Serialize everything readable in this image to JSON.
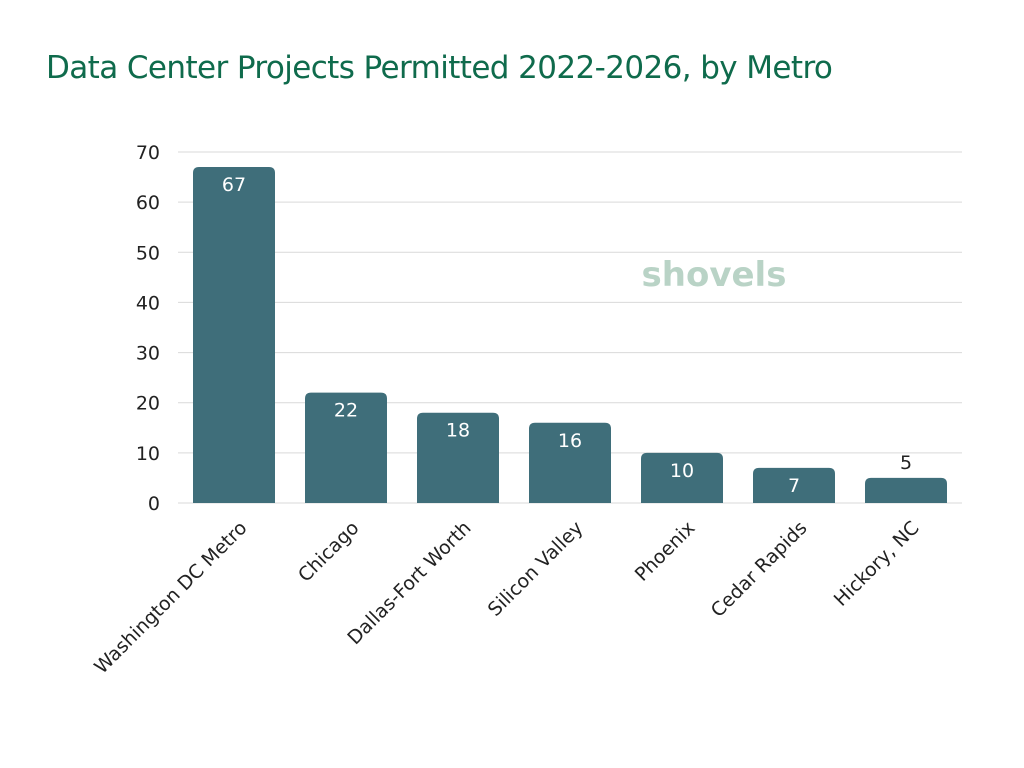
{
  "colors": {
    "title": "#0f6b4c",
    "bar": "#3f6e7a",
    "grid": "#d9d9d9",
    "label_inside": "#ffffff",
    "label_outside": "#222222",
    "watermark": "#b9d3c6",
    "watermark_accent": "#f0c98a"
  },
  "watermark": {
    "text": "shovels"
  },
  "chart_data": {
    "type": "bar",
    "title": "Data Center Projects Permitted 2022-2026, by Metro",
    "xlabel": "",
    "ylabel": "",
    "categories": [
      "Washington DC Metro",
      "Chicago",
      "Dallas-Fort Worth",
      "Silicon Valley",
      "Phoenix",
      "Cedar Rapids",
      "Hickory, NC"
    ],
    "values": [
      67,
      22,
      18,
      16,
      10,
      7,
      5
    ],
    "ylim": [
      0,
      70
    ],
    "yticks": [
      0,
      10,
      20,
      30,
      40,
      50,
      60,
      70
    ],
    "grid": true,
    "data_labels": true,
    "legend": "none"
  }
}
